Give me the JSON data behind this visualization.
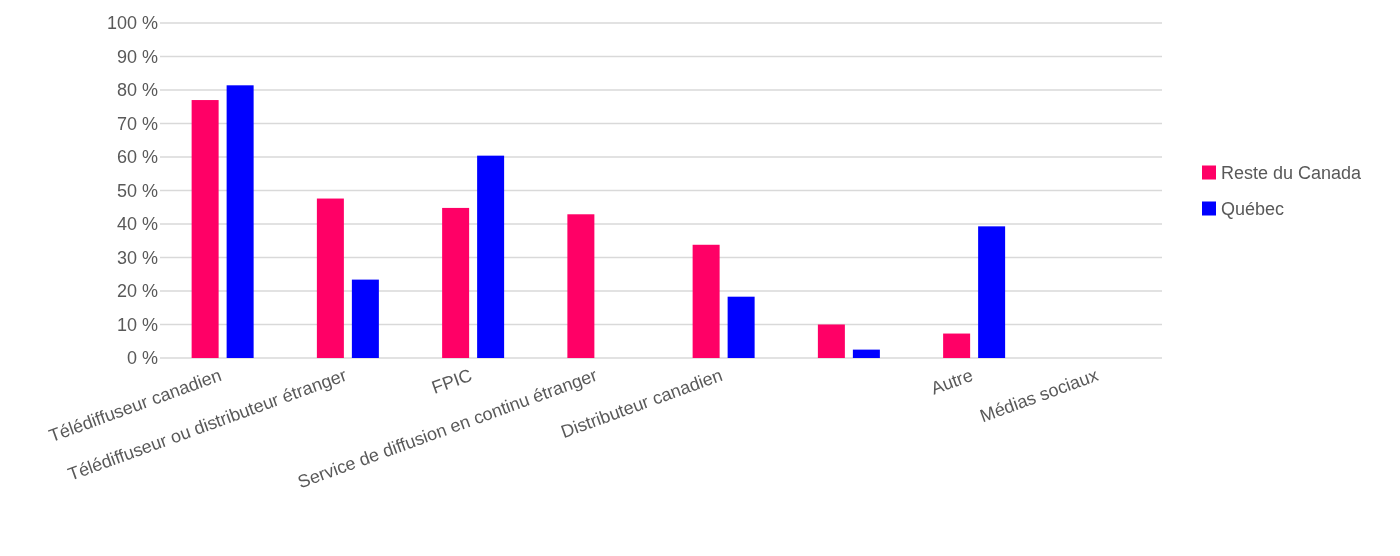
{
  "chart_data": {
    "type": "bar",
    "categories": [
      "Télédiffuseur canadien",
      "Télédiffuseur ou distributeur étranger",
      "FPIC",
      "Service de diffusion en continu étranger",
      "Distributeur canadien",
      null,
      "Autre",
      "Médias sociaux"
    ],
    "series": [
      {
        "name": "Reste du Canada",
        "color": "#ff0066",
        "values": [
          77,
          47.6,
          44.8,
          42.9,
          33.8,
          10,
          7.3,
          null
        ]
      },
      {
        "name": "Québec",
        "color": "#0000ff",
        "values": [
          81.4,
          23.4,
          60.4,
          null,
          18.3,
          2.5,
          39.3,
          null
        ]
      }
    ],
    "ylim": [
      0,
      100
    ],
    "yticks": [
      {
        "value": 0,
        "label": "0 %"
      },
      {
        "value": 10,
        "label": "10 %"
      },
      {
        "value": 20,
        "label": "20 %"
      },
      {
        "value": 30,
        "label": "30 %"
      },
      {
        "value": 40,
        "label": "40 %"
      },
      {
        "value": 50,
        "label": "50 %"
      },
      {
        "value": 60,
        "label": "60 %"
      },
      {
        "value": 70,
        "label": "70 %"
      },
      {
        "value": 80,
        "label": "80 %"
      },
      {
        "value": 90,
        "label": "90 %"
      },
      {
        "value": 100,
        "label": "100 %"
      }
    ],
    "grid": "y",
    "legend": "right"
  }
}
